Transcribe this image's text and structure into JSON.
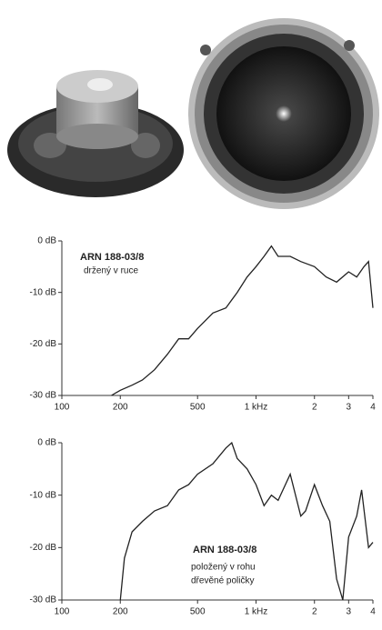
{
  "chart_data": [
    {
      "type": "line",
      "xscale": "log",
      "color": "#222",
      "annotations": [
        "ARN 188-03/8",
        "držený v ruce"
      ],
      "x": [
        180,
        200,
        230,
        260,
        300,
        350,
        400,
        450,
        500,
        600,
        700,
        800,
        900,
        1000,
        1100,
        1200,
        1300,
        1500,
        1700,
        2000,
        2300,
        2600,
        3000,
        3300,
        3600,
        3800,
        4000
      ],
      "values": [
        -30,
        -29,
        -28,
        -27,
        -25,
        -22,
        -19,
        -19,
        -17,
        -14,
        -13,
        -10,
        -7,
        -5,
        -3,
        -1,
        -3,
        -3,
        -4,
        -5,
        -7,
        -8,
        -6,
        -7,
        -5,
        -4,
        -13
      ],
      "xlim": [
        100,
        4000
      ],
      "ylim": [
        -30,
        0
      ],
      "xticks": [
        100,
        200,
        500,
        {
          "value": 1000,
          "label": "1 kHz"
        },
        {
          "value": 2000,
          "label": "2"
        },
        {
          "value": 3000,
          "label": "3"
        },
        {
          "value": 4000,
          "label": "4"
        }
      ],
      "yticks": [
        {
          "value": 0,
          "label": "0 dB"
        },
        {
          "value": -10,
          "label": "-10 dB"
        },
        {
          "value": -20,
          "label": "-20 dB"
        },
        {
          "value": -30,
          "label": "-30 dB"
        }
      ]
    },
    {
      "type": "line",
      "xscale": "log",
      "color": "#222",
      "annotations": [
        "ARN 188-03/8",
        "položený v rohu",
        "dřevěné poličky"
      ],
      "x": [
        200,
        210,
        230,
        260,
        300,
        350,
        400,
        450,
        500,
        600,
        700,
        750,
        800,
        900,
        1000,
        1100,
        1200,
        1300,
        1500,
        1700,
        1800,
        2000,
        2200,
        2400,
        2600,
        2800,
        3000,
        3300,
        3500,
        3800,
        4000
      ],
      "values": [
        -30,
        -22,
        -17,
        -15,
        -13,
        -12,
        -9,
        -8,
        -6,
        -4,
        -1,
        0,
        -3,
        -5,
        -8,
        -12,
        -10,
        -11,
        -6,
        -14,
        -13,
        -8,
        -12,
        -15,
        -26,
        -30,
        -18,
        -14,
        -9,
        -20,
        -19
      ],
      "xlim": [
        100,
        4000
      ],
      "ylim": [
        -30,
        0
      ],
      "xticks": [
        100,
        200,
        500,
        {
          "value": 1000,
          "label": "1 kHz"
        },
        {
          "value": 2000,
          "label": "2"
        },
        {
          "value": 3000,
          "label": "3"
        },
        {
          "value": 4000,
          "label": "4"
        }
      ],
      "yticks": [
        {
          "value": 0,
          "label": "0 dB"
        },
        {
          "value": -10,
          "label": "-10 dB"
        },
        {
          "value": -20,
          "label": "-20 dB"
        },
        {
          "value": -30,
          "label": "-30 dB"
        }
      ]
    }
  ]
}
